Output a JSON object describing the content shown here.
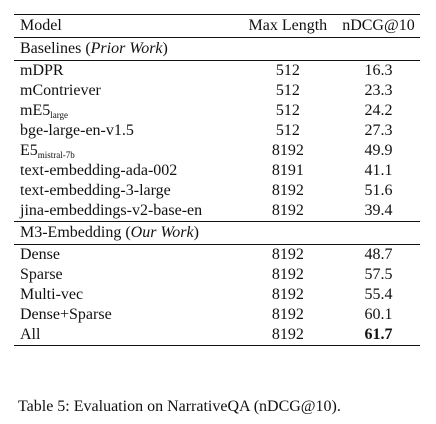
{
  "table": {
    "headers": {
      "model": "Model",
      "max_length": "Max Length",
      "ndcg": "nDCG@10"
    },
    "baselines_section": {
      "label": "Baselines (",
      "label_italic": "Prior Work",
      "label_close": ")"
    },
    "baselines": [
      {
        "model": "mDPR",
        "model_sub": "",
        "max_length": "512",
        "ndcg": "16.3"
      },
      {
        "model": "mContriever",
        "model_sub": "",
        "max_length": "512",
        "ndcg": "23.3"
      },
      {
        "model": "mE5",
        "model_sub": "large",
        "max_length": "512",
        "ndcg": "24.2"
      },
      {
        "model": "bge-large-en-v1.5",
        "model_sub": "",
        "max_length": "512",
        "ndcg": "27.3"
      },
      {
        "model": "E5",
        "model_sub": "mistral-7b",
        "max_length": "8192",
        "ndcg": "49.9"
      },
      {
        "model": "text-embedding-ada-002",
        "model_sub": "",
        "max_length": "8191",
        "ndcg": "41.1"
      },
      {
        "model": "text-embedding-3-large",
        "model_sub": "",
        "max_length": "8192",
        "ndcg": "51.6"
      },
      {
        "model": "jina-embeddings-v2-base-en",
        "model_sub": "",
        "max_length": "8192",
        "ndcg": "39.4"
      }
    ],
    "ours_section": {
      "label": "M3-Embedding (",
      "label_italic": "Our Work",
      "label_close": ")"
    },
    "ours": [
      {
        "model": "Dense",
        "max_length": "8192",
        "ndcg": "48.7"
      },
      {
        "model": "Sparse",
        "max_length": "8192",
        "ndcg": "57.5"
      },
      {
        "model": "Multi-vec",
        "max_length": "8192",
        "ndcg": "55.4"
      },
      {
        "model": "Dense+Sparse",
        "max_length": "8192",
        "ndcg": "60.1"
      },
      {
        "model": "All",
        "max_length": "8192",
        "ndcg": "61.7",
        "bold": true
      }
    ]
  },
  "caption": "Table 5: Evaluation on NarrativeQA (nDCG@10)."
}
